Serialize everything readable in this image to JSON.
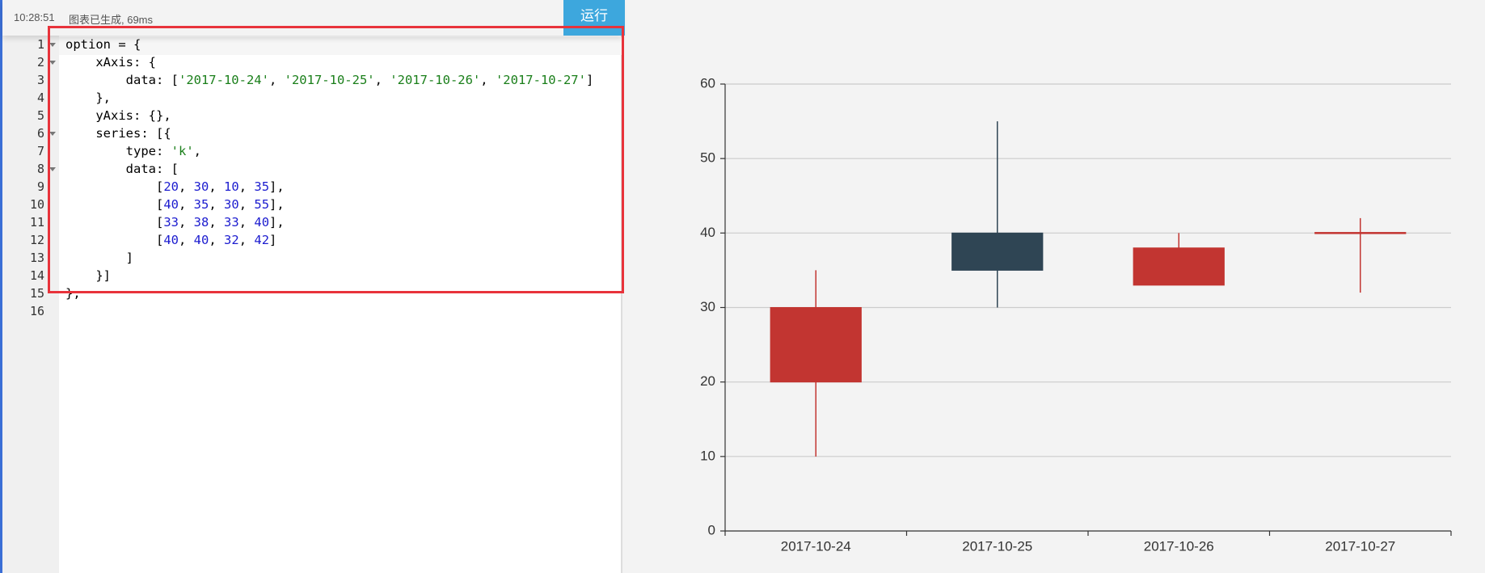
{
  "status": {
    "time": "10:28:51",
    "message": "图表已生成, 69ms"
  },
  "run_button": "运行",
  "editor": {
    "line_numbers": [
      1,
      2,
      3,
      4,
      5,
      6,
      7,
      8,
      9,
      10,
      11,
      12,
      13,
      14,
      15,
      16
    ],
    "lines": [
      "option = {",
      "    xAxis: {",
      "        data: ['2017-10-24', '2017-10-25', '2017-10-26', '2017-10-27']",
      "    },",
      "    yAxis: {},",
      "    series: [{",
      "        type: 'k',",
      "        data: [",
      "            [20, 30, 10, 35],",
      "            [40, 35, 30, 55],",
      "            [33, 38, 33, 40],",
      "            [40, 40, 32, 42]",
      "        ]",
      "    }]",
      "};",
      ""
    ]
  },
  "chart_data": {
    "type": "candlestick",
    "categories": [
      "2017-10-24",
      "2017-10-25",
      "2017-10-26",
      "2017-10-27"
    ],
    "open": [
      20,
      40,
      33,
      40
    ],
    "close": [
      30,
      35,
      38,
      40
    ],
    "low": [
      10,
      30,
      33,
      32
    ],
    "high": [
      35,
      55,
      40,
      42
    ],
    "up_color": "#c23531",
    "down_color": "#2f4554",
    "ylim": [
      0,
      60
    ],
    "yticks": [
      0,
      10,
      20,
      30,
      40,
      50,
      60
    ],
    "grid": true
  }
}
